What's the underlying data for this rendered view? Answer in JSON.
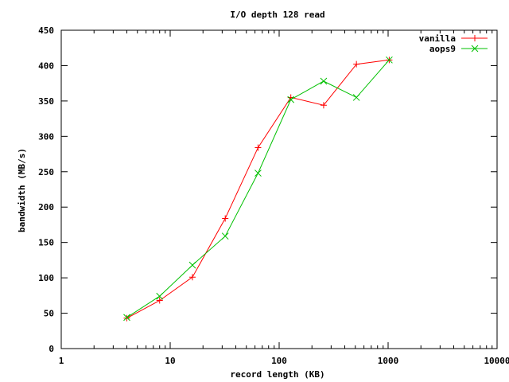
{
  "chart_data": {
    "type": "line",
    "title": "I/O depth 128 read",
    "xlabel": "record length (KB)",
    "ylabel": "bandwidth (MB/s)",
    "xscale": "log",
    "xlim": [
      1,
      10000
    ],
    "ylim": [
      0,
      450
    ],
    "xticks": [
      1,
      10,
      100,
      1000,
      10000
    ],
    "xtick_labels": [
      "1",
      "10",
      "100",
      "1000",
      "10000"
    ],
    "yticks": [
      0,
      50,
      100,
      150,
      200,
      250,
      300,
      350,
      400,
      450
    ],
    "ytick_labels": [
      "0",
      "50",
      "100",
      "150",
      "200",
      "250",
      "300",
      "350",
      "400",
      "450"
    ],
    "legend_position": "top-right",
    "grid": false,
    "series": [
      {
        "name": "vanilla",
        "color": "#ff0000",
        "marker": "plus",
        "x": [
          4,
          8,
          16,
          32,
          64,
          128,
          256,
          512,
          1024
        ],
        "y": [
          43,
          68,
          101,
          184,
          284,
          355,
          344,
          402,
          408
        ]
      },
      {
        "name": "aops9",
        "color": "#00c000",
        "marker": "cross",
        "x": [
          4,
          8,
          16,
          32,
          64,
          128,
          256,
          512,
          1024
        ],
        "y": [
          44,
          74,
          118,
          159,
          248,
          352,
          378,
          355,
          408
        ]
      }
    ]
  }
}
